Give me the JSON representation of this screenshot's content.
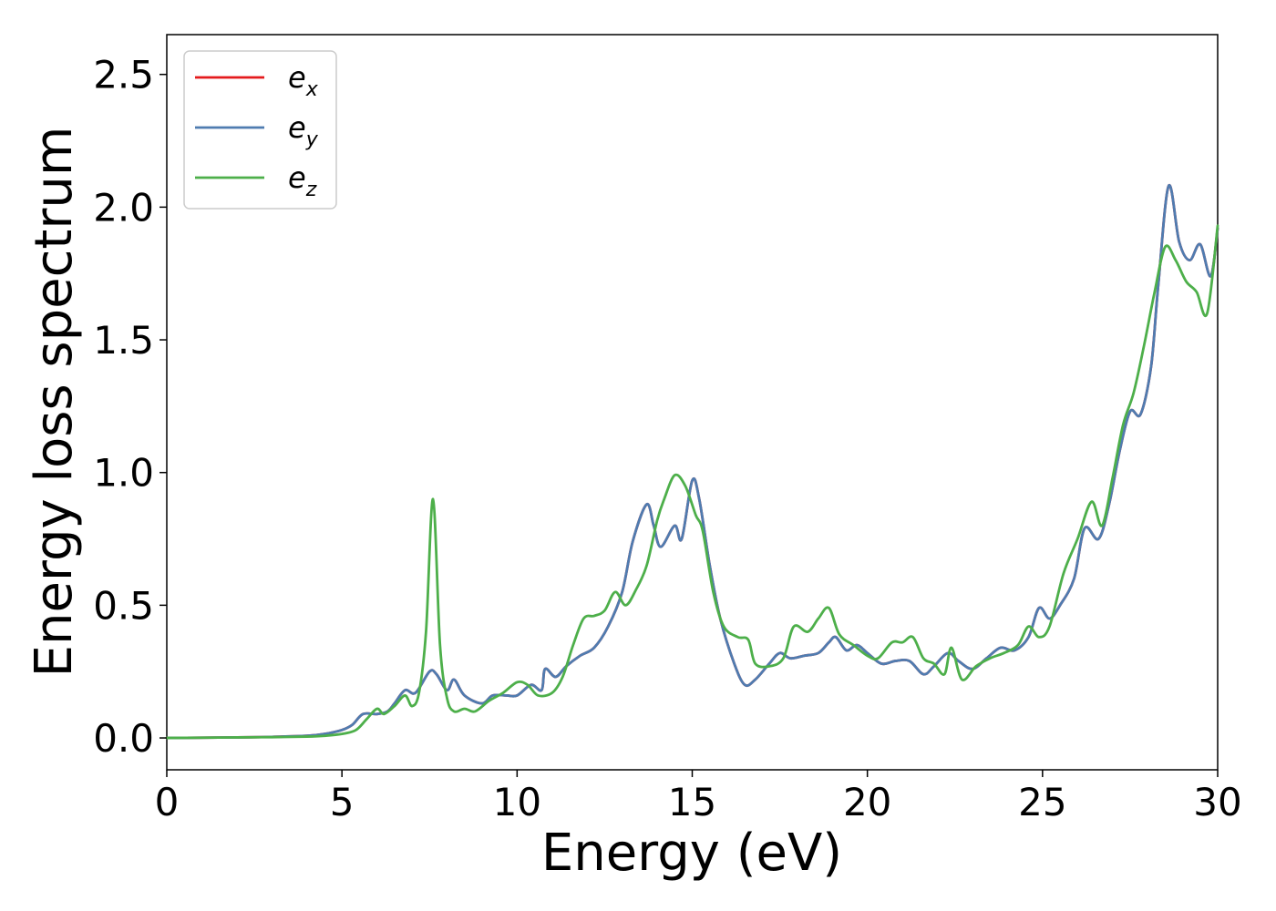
{
  "chart_data": {
    "type": "line",
    "title": "",
    "xlabel": "Energy (eV)",
    "ylabel": "Energy loss spectrum",
    "xlim": [
      0,
      30
    ],
    "ylim": [
      -0.12,
      2.65
    ],
    "xticks": [
      0,
      5,
      10,
      15,
      20,
      25,
      30
    ],
    "yticks": [
      0.0,
      0.5,
      1.0,
      1.5,
      2.0,
      2.5
    ],
    "xtick_labels": [
      "0",
      "5",
      "10",
      "15",
      "20",
      "25",
      "30"
    ],
    "ytick_labels": [
      "0.0",
      "0.5",
      "1.0",
      "1.5",
      "2.0",
      "2.5"
    ],
    "grid": false,
    "legend_position": "top-left",
    "series": [
      {
        "name": "e",
        "subscript": "x",
        "color": "#e41a1c",
        "points": [
          [
            0,
            0
          ],
          [
            2,
            0.002
          ],
          [
            3,
            0.004
          ],
          [
            4,
            0.008
          ],
          [
            4.5,
            0.015
          ],
          [
            5,
            0.03
          ],
          [
            5.3,
            0.05
          ],
          [
            5.6,
            0.09
          ],
          [
            6,
            0.09
          ],
          [
            6.3,
            0.1
          ],
          [
            6.5,
            0.13
          ],
          [
            6.8,
            0.18
          ],
          [
            7.1,
            0.17
          ],
          [
            7.5,
            0.25
          ],
          [
            7.7,
            0.24
          ],
          [
            8,
            0.18
          ],
          [
            8.2,
            0.22
          ],
          [
            8.5,
            0.16
          ],
          [
            9,
            0.13
          ],
          [
            9.3,
            0.16
          ],
          [
            9.7,
            0.16
          ],
          [
            10,
            0.16
          ],
          [
            10.4,
            0.2
          ],
          [
            10.7,
            0.18
          ],
          [
            10.8,
            0.26
          ],
          [
            11.1,
            0.23
          ],
          [
            11.4,
            0.27
          ],
          [
            11.8,
            0.31
          ],
          [
            12.2,
            0.34
          ],
          [
            12.6,
            0.42
          ],
          [
            13,
            0.55
          ],
          [
            13.3,
            0.74
          ],
          [
            13.7,
            0.88
          ],
          [
            13.9,
            0.8
          ],
          [
            14.1,
            0.72
          ],
          [
            14.5,
            0.8
          ],
          [
            14.7,
            0.75
          ],
          [
            15,
            0.97
          ],
          [
            15.2,
            0.9
          ],
          [
            15.5,
            0.65
          ],
          [
            15.8,
            0.45
          ],
          [
            16.2,
            0.28
          ],
          [
            16.5,
            0.2
          ],
          [
            16.8,
            0.22
          ],
          [
            17.2,
            0.28
          ],
          [
            17.5,
            0.32
          ],
          [
            17.8,
            0.3
          ],
          [
            18.2,
            0.31
          ],
          [
            18.6,
            0.32
          ],
          [
            18.9,
            0.36
          ],
          [
            19.1,
            0.38
          ],
          [
            19.4,
            0.33
          ],
          [
            19.7,
            0.35
          ],
          [
            20,
            0.32
          ],
          [
            20.4,
            0.28
          ],
          [
            20.8,
            0.29
          ],
          [
            21.2,
            0.29
          ],
          [
            21.6,
            0.24
          ],
          [
            21.9,
            0.27
          ],
          [
            22.3,
            0.32
          ],
          [
            22.6,
            0.29
          ],
          [
            23,
            0.26
          ],
          [
            23.4,
            0.3
          ],
          [
            23.8,
            0.34
          ],
          [
            24.2,
            0.33
          ],
          [
            24.6,
            0.38
          ],
          [
            24.9,
            0.49
          ],
          [
            25.2,
            0.45
          ],
          [
            25.5,
            0.5
          ],
          [
            25.9,
            0.6
          ],
          [
            26.2,
            0.79
          ],
          [
            26.6,
            0.75
          ],
          [
            26.9,
            0.88
          ],
          [
            27.2,
            1.08
          ],
          [
            27.5,
            1.23
          ],
          [
            27.8,
            1.22
          ],
          [
            28.1,
            1.4
          ],
          [
            28.3,
            1.7
          ],
          [
            28.6,
            2.08
          ],
          [
            28.9,
            1.87
          ],
          [
            29.2,
            1.8
          ],
          [
            29.5,
            1.86
          ],
          [
            29.8,
            1.74
          ],
          [
            30,
            1.92
          ]
        ]
      },
      {
        "name": "e",
        "subscript": "y",
        "color": "#4f7cb0",
        "points": [
          [
            0,
            0
          ],
          [
            2,
            0.002
          ],
          [
            3,
            0.004
          ],
          [
            4,
            0.008
          ],
          [
            4.5,
            0.015
          ],
          [
            5,
            0.03
          ],
          [
            5.3,
            0.05
          ],
          [
            5.6,
            0.09
          ],
          [
            6,
            0.09
          ],
          [
            6.3,
            0.1
          ],
          [
            6.5,
            0.13
          ],
          [
            6.8,
            0.18
          ],
          [
            7.1,
            0.17
          ],
          [
            7.5,
            0.25
          ],
          [
            7.7,
            0.24
          ],
          [
            8,
            0.18
          ],
          [
            8.2,
            0.22
          ],
          [
            8.5,
            0.16
          ],
          [
            9,
            0.13
          ],
          [
            9.3,
            0.16
          ],
          [
            9.7,
            0.16
          ],
          [
            10,
            0.16
          ],
          [
            10.4,
            0.2
          ],
          [
            10.7,
            0.18
          ],
          [
            10.8,
            0.26
          ],
          [
            11.1,
            0.23
          ],
          [
            11.4,
            0.27
          ],
          [
            11.8,
            0.31
          ],
          [
            12.2,
            0.34
          ],
          [
            12.6,
            0.42
          ],
          [
            13,
            0.55
          ],
          [
            13.3,
            0.74
          ],
          [
            13.7,
            0.88
          ],
          [
            13.9,
            0.8
          ],
          [
            14.1,
            0.72
          ],
          [
            14.5,
            0.8
          ],
          [
            14.7,
            0.75
          ],
          [
            15,
            0.97
          ],
          [
            15.2,
            0.9
          ],
          [
            15.5,
            0.65
          ],
          [
            15.8,
            0.45
          ],
          [
            16.2,
            0.28
          ],
          [
            16.5,
            0.2
          ],
          [
            16.8,
            0.22
          ],
          [
            17.2,
            0.28
          ],
          [
            17.5,
            0.32
          ],
          [
            17.8,
            0.3
          ],
          [
            18.2,
            0.31
          ],
          [
            18.6,
            0.32
          ],
          [
            18.9,
            0.36
          ],
          [
            19.1,
            0.38
          ],
          [
            19.4,
            0.33
          ],
          [
            19.7,
            0.35
          ],
          [
            20,
            0.32
          ],
          [
            20.4,
            0.28
          ],
          [
            20.8,
            0.29
          ],
          [
            21.2,
            0.29
          ],
          [
            21.6,
            0.24
          ],
          [
            21.9,
            0.27
          ],
          [
            22.3,
            0.32
          ],
          [
            22.6,
            0.29
          ],
          [
            23,
            0.26
          ],
          [
            23.4,
            0.3
          ],
          [
            23.8,
            0.34
          ],
          [
            24.2,
            0.33
          ],
          [
            24.6,
            0.38
          ],
          [
            24.9,
            0.49
          ],
          [
            25.2,
            0.45
          ],
          [
            25.5,
            0.5
          ],
          [
            25.9,
            0.6
          ],
          [
            26.2,
            0.79
          ],
          [
            26.6,
            0.75
          ],
          [
            26.9,
            0.88
          ],
          [
            27.2,
            1.08
          ],
          [
            27.5,
            1.23
          ],
          [
            27.8,
            1.22
          ],
          [
            28.1,
            1.4
          ],
          [
            28.3,
            1.7
          ],
          [
            28.6,
            2.08
          ],
          [
            28.9,
            1.87
          ],
          [
            29.2,
            1.8
          ],
          [
            29.5,
            1.86
          ],
          [
            29.8,
            1.74
          ],
          [
            30,
            1.92
          ]
        ]
      },
      {
        "name": "e",
        "subscript": "z",
        "color": "#4daf4a",
        "points": [
          [
            0,
            0
          ],
          [
            2,
            0.002
          ],
          [
            3,
            0.003
          ],
          [
            4,
            0.005
          ],
          [
            4.5,
            0.008
          ],
          [
            5,
            0.015
          ],
          [
            5.4,
            0.03
          ],
          [
            5.7,
            0.07
          ],
          [
            6,
            0.11
          ],
          [
            6.2,
            0.09
          ],
          [
            6.5,
            0.12
          ],
          [
            6.8,
            0.16
          ],
          [
            7,
            0.12
          ],
          [
            7.2,
            0.17
          ],
          [
            7.4,
            0.4
          ],
          [
            7.6,
            0.9
          ],
          [
            7.8,
            0.35
          ],
          [
            8,
            0.15
          ],
          [
            8.2,
            0.1
          ],
          [
            8.5,
            0.11
          ],
          [
            8.8,
            0.1
          ],
          [
            9.2,
            0.14
          ],
          [
            9.6,
            0.17
          ],
          [
            10,
            0.21
          ],
          [
            10.3,
            0.2
          ],
          [
            10.6,
            0.16
          ],
          [
            11,
            0.17
          ],
          [
            11.3,
            0.23
          ],
          [
            11.6,
            0.35
          ],
          [
            11.9,
            0.45
          ],
          [
            12.2,
            0.46
          ],
          [
            12.5,
            0.48
          ],
          [
            12.8,
            0.55
          ],
          [
            13.1,
            0.5
          ],
          [
            13.4,
            0.56
          ],
          [
            13.7,
            0.65
          ],
          [
            14,
            0.82
          ],
          [
            14.2,
            0.9
          ],
          [
            14.5,
            0.99
          ],
          [
            14.8,
            0.95
          ],
          [
            15.1,
            0.84
          ],
          [
            15.3,
            0.78
          ],
          [
            15.6,
            0.55
          ],
          [
            15.9,
            0.42
          ],
          [
            16.3,
            0.38
          ],
          [
            16.6,
            0.37
          ],
          [
            16.8,
            0.28
          ],
          [
            17.2,
            0.27
          ],
          [
            17.6,
            0.3
          ],
          [
            17.9,
            0.42
          ],
          [
            18.3,
            0.4
          ],
          [
            18.6,
            0.45
          ],
          [
            18.9,
            0.49
          ],
          [
            19.2,
            0.39
          ],
          [
            19.6,
            0.35
          ],
          [
            20,
            0.31
          ],
          [
            20.3,
            0.3
          ],
          [
            20.7,
            0.36
          ],
          [
            21,
            0.36
          ],
          [
            21.3,
            0.38
          ],
          [
            21.6,
            0.3
          ],
          [
            21.9,
            0.28
          ],
          [
            22.2,
            0.24
          ],
          [
            22.4,
            0.34
          ],
          [
            22.7,
            0.22
          ],
          [
            23.1,
            0.27
          ],
          [
            23.5,
            0.3
          ],
          [
            23.9,
            0.32
          ],
          [
            24.3,
            0.35
          ],
          [
            24.6,
            0.42
          ],
          [
            24.9,
            0.38
          ],
          [
            25.2,
            0.42
          ],
          [
            25.6,
            0.62
          ],
          [
            26,
            0.75
          ],
          [
            26.4,
            0.89
          ],
          [
            26.7,
            0.8
          ],
          [
            27,
            0.98
          ],
          [
            27.3,
            1.18
          ],
          [
            27.6,
            1.3
          ],
          [
            27.9,
            1.48
          ],
          [
            28.2,
            1.68
          ],
          [
            28.5,
            1.85
          ],
          [
            28.8,
            1.8
          ],
          [
            29.1,
            1.72
          ],
          [
            29.4,
            1.68
          ],
          [
            29.7,
            1.6
          ],
          [
            30,
            1.93
          ]
        ]
      }
    ]
  }
}
